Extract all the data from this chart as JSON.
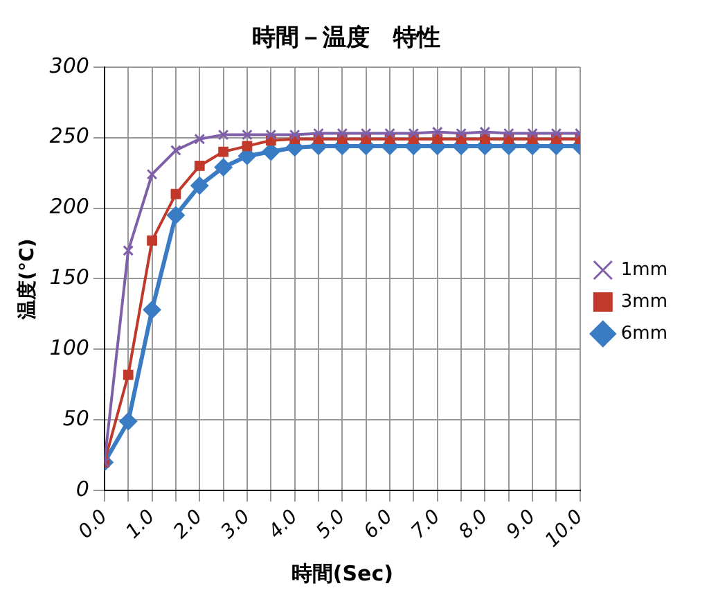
{
  "chart_data": {
    "type": "line",
    "title": "時間－温度　特性",
    "xlabel": "時間(Sec)",
    "ylabel": "温度(°C)",
    "x": [
      0,
      0.5,
      1,
      1.5,
      2,
      2.5,
      3,
      3.5,
      4,
      4.5,
      5,
      5.5,
      6,
      6.5,
      7,
      7.5,
      8,
      8.5,
      9,
      9.5,
      10
    ],
    "series": [
      {
        "name": "1mm",
        "color": "#7f5fa8",
        "marker": "cross",
        "values": [
          20,
          170,
          224,
          241,
          249,
          252,
          252,
          252,
          252,
          253,
          253,
          253,
          253,
          253,
          254,
          253,
          254,
          253,
          253,
          253,
          253
        ]
      },
      {
        "name": "3mm",
        "color": "#c0392b",
        "marker": "square",
        "values": [
          20,
          82,
          177,
          210,
          230,
          240,
          244,
          248,
          249,
          249,
          249,
          249,
          249,
          249,
          249,
          249,
          249,
          249,
          249,
          249,
          249
        ]
      },
      {
        "name": "6mm",
        "color": "#3a7cc4",
        "marker": "diamond",
        "values": [
          20,
          49,
          128,
          195,
          216,
          229,
          237,
          240,
          243,
          244,
          244,
          244,
          244,
          244,
          244,
          244,
          244,
          244,
          244,
          244,
          244
        ]
      }
    ],
    "xlim": [
      0,
      10
    ],
    "xticks": [
      {
        "value": 0,
        "label": "0.0"
      },
      {
        "value": 0.5,
        "label": null
      },
      {
        "value": 1,
        "label": "1.0"
      },
      {
        "value": 1.5,
        "label": null
      },
      {
        "value": 2,
        "label": "2.0"
      },
      {
        "value": 2.5,
        "label": null
      },
      {
        "value": 3,
        "label": "3.0"
      },
      {
        "value": 3.5,
        "label": null
      },
      {
        "value": 4,
        "label": "4.0"
      },
      {
        "value": 4.5,
        "label": null
      },
      {
        "value": 5,
        "label": "5.0"
      },
      {
        "value": 5.5,
        "label": null
      },
      {
        "value": 6,
        "label": "6.0"
      },
      {
        "value": 6.5,
        "label": null
      },
      {
        "value": 7,
        "label": "7.0"
      },
      {
        "value": 7.5,
        "label": null
      },
      {
        "value": 8,
        "label": "8.0"
      },
      {
        "value": 8.5,
        "label": null
      },
      {
        "value": 9,
        "label": "9.0"
      },
      {
        "value": 9.5,
        "label": null
      },
      {
        "value": 10,
        "label": "10.0"
      }
    ],
    "ylim": [
      0,
      300
    ],
    "yticks": [
      0,
      50,
      100,
      150,
      200,
      250,
      300
    ],
    "grid": true,
    "legend": "right",
    "line_style": "solid"
  }
}
